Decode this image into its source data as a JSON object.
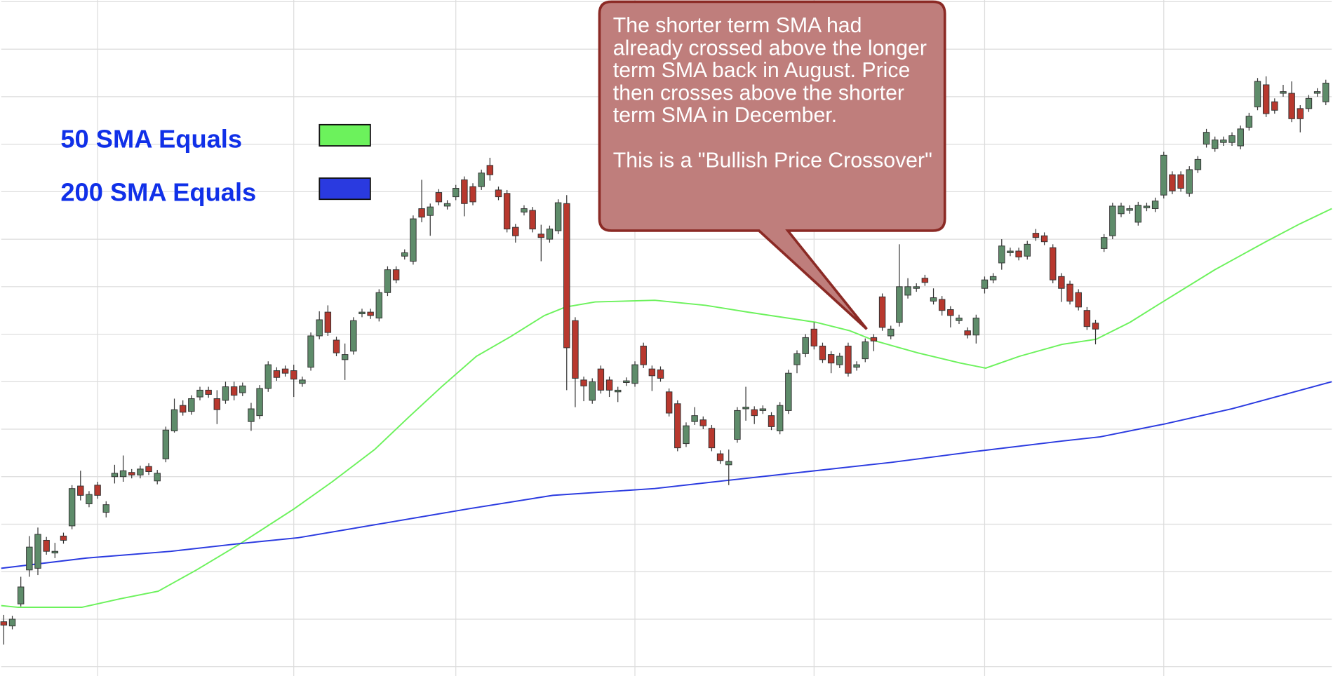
{
  "chart_data": {
    "type": "candlestick",
    "up_color": "#5e8c6a",
    "down_color": "#b8382e",
    "grid": true,
    "xlim": [
      -0.3,
      155.7
    ],
    "xticks": [
      11,
      34,
      53,
      74,
      95,
      115,
      136
    ],
    "ylim": [
      -11,
      786
    ],
    "yticks": [
      0,
      56,
      112,
      168,
      224,
      280,
      336,
      392,
      448,
      504,
      560,
      616,
      672,
      728,
      784
    ],
    "open": [
      53,
      48,
      74,
      114,
      116,
      149,
      134,
      154,
      166,
      213,
      192,
      214,
      182,
      224,
      224,
      229,
      226,
      236,
      219,
      245,
      278,
      308,
      301,
      318,
      326,
      316,
      314,
      330,
      323,
      289,
      296,
      328,
      349,
      351,
      349,
      334,
      353,
      390,
      418,
      385,
      362,
      372,
      416,
      418,
      411,
      441,
      468,
      484,
      478,
      540,
      532,
      559,
      543,
      554,
      574,
      566,
      566,
      591,
      562,
      558,
      518,
      536,
      538,
      510,
      504,
      514,
      546,
      408,
      338,
      314,
      351,
      338,
      324,
      335,
      334,
      378,
      351,
      350,
      324,
      310,
      263,
      289,
      291,
      281,
      251,
      238,
      268,
      304,
      303,
      302,
      296,
      278,
      302,
      356,
      369,
      398,
      378,
      368,
      356,
      378,
      353,
      363,
      388,
      436,
      390,
      406,
      438,
      446,
      458,
      431,
      433,
      421,
      408,
      396,
      391,
      446,
      456,
      476,
      488,
      490,
      484,
      511,
      508,
      494,
      460,
      451,
      441,
      420,
      405,
      493,
      508,
      534,
      538,
      524,
      541,
      540,
      556,
      580,
      580,
      558,
      586,
      616,
      611,
      618,
      618,
      614,
      636,
      660,
      686,
      666,
      676,
      676,
      658,
      658,
      676,
      666
    ],
    "high": [
      61,
      60,
      106,
      154,
      164,
      153,
      146,
      158,
      214,
      231,
      207,
      218,
      195,
      238,
      249,
      233,
      237,
      240,
      232,
      283,
      316,
      314,
      320,
      330,
      330,
      326,
      336,
      336,
      335,
      311,
      332,
      360,
      353,
      355,
      356,
      342,
      394,
      419,
      426,
      389,
      381,
      412,
      422,
      422,
      445,
      472,
      472,
      492,
      532,
      574,
      546,
      563,
      550,
      568,
      578,
      570,
      586,
      600,
      566,
      562,
      522,
      544,
      542,
      521,
      520,
      551,
      556,
      412,
      342,
      340,
      355,
      342,
      330,
      341,
      360,
      382,
      355,
      354,
      328,
      314,
      288,
      306,
      295,
      285,
      255,
      256,
      306,
      330,
      307,
      308,
      300,
      312,
      350,
      373,
      392,
      406,
      382,
      372,
      370,
      382,
      360,
      387,
      392,
      440,
      402,
      498,
      458,
      452,
      462,
      446,
      437,
      425,
      415,
      400,
      415,
      460,
      464,
      504,
      494,
      494,
      502,
      516,
      512,
      498,
      464,
      455,
      445,
      424,
      409,
      510,
      547,
      547,
      544,
      548,
      547,
      553,
      607,
      584,
      584,
      590,
      602,
      634,
      625,
      625,
      630,
      638,
      653,
      694,
      696,
      670,
      686,
      690,
      662,
      674,
      682,
      692
    ],
    "low": [
      26,
      44,
      71,
      106,
      108,
      132,
      128,
      145,
      162,
      196,
      188,
      198,
      176,
      216,
      218,
      222,
      222,
      226,
      215,
      241,
      276,
      296,
      297,
      314,
      317,
      286,
      310,
      314,
      319,
      278,
      292,
      324,
      337,
      342,
      318,
      330,
      349,
      386,
      390,
      366,
      338,
      368,
      412,
      410,
      407,
      437,
      452,
      480,
      474,
      524,
      508,
      544,
      539,
      550,
      531,
      544,
      562,
      573,
      550,
      512,
      500,
      532,
      512,
      478,
      500,
      510,
      326,
      306,
      313,
      310,
      322,
      318,
      312,
      331,
      330,
      352,
      325,
      336,
      295,
      254,
      259,
      285,
      280,
      254,
      239,
      214,
      264,
      290,
      286,
      298,
      279,
      274,
      298,
      346,
      365,
      374,
      358,
      346,
      352,
      342,
      349,
      359,
      372,
      396,
      386,
      401,
      434,
      442,
      449,
      427,
      414,
      400,
      404,
      387,
      381,
      440,
      452,
      468,
      484,
      479,
      480,
      502,
      497,
      452,
      430,
      427,
      420,
      397,
      380,
      489,
      504,
      530,
      534,
      520,
      537,
      536,
      552,
      557,
      560,
      554,
      582,
      612,
      607,
      614,
      614,
      610,
      632,
      656,
      648,
      652,
      672,
      642,
      630,
      654,
      672,
      662
    ],
    "close": [
      49,
      56,
      94,
      141,
      156,
      136,
      136,
      149,
      210,
      202,
      203,
      202,
      191,
      228,
      231,
      226,
      233,
      230,
      228,
      279,
      303,
      300,
      316,
      326,
      321,
      303,
      330,
      320,
      331,
      304,
      328,
      356,
      341,
      346,
      339,
      338,
      390,
      409,
      394,
      370,
      368,
      408,
      418,
      414,
      441,
      468,
      456,
      488,
      528,
      530,
      542,
      548,
      546,
      564,
      546,
      548,
      582,
      580,
      554,
      516,
      508,
      540,
      516,
      506,
      516,
      547,
      376,
      340,
      331,
      336,
      326,
      326,
      326,
      337,
      356,
      356,
      343,
      340,
      299,
      258,
      284,
      296,
      284,
      258,
      243,
      242,
      302,
      306,
      296,
      304,
      283,
      308,
      346,
      369,
      388,
      378,
      362,
      358,
      366,
      346,
      356,
      383,
      384,
      400,
      398,
      448,
      448,
      448,
      453,
      435,
      420,
      414,
      411,
      391,
      411,
      456,
      460,
      496,
      490,
      483,
      498,
      506,
      501,
      456,
      446,
      431,
      424,
      401,
      398,
      506,
      543,
      543,
      540,
      544,
      543,
      549,
      603,
      561,
      564,
      586,
      598,
      630,
      621,
      621,
      626,
      634,
      649,
      690,
      652,
      656,
      678,
      646,
      646,
      670,
      678,
      688
    ],
    "series": [
      {
        "name": "50 SMA Equals",
        "type": "line",
        "color": "#6cf25c",
        "x": [
          -0.3,
          1.69,
          9.15,
          13.63,
          18.11,
          22.59,
          27.56,
          34.03,
          38.51,
          43.48,
          47.46,
          51.44,
          55.42,
          59.4,
          63.38,
          65.87,
          69.35,
          76.32,
          82.29,
          87.26,
          95.22,
          99.2,
          102.19,
          107.16,
          112.14,
          115.12,
          119.1,
          124.08,
          128.06,
          132.04,
          136.02,
          141.99,
          147.96,
          151.94,
          155.7
        ],
        "values": [
          72,
          70,
          70,
          80,
          89,
          114,
          144,
          186,
          218,
          256,
          294,
          331,
          366,
          389,
          414,
          424,
          430,
          432,
          426,
          418,
          406,
          396,
          384,
          370,
          358,
          352,
          366,
          380,
          386,
          406,
          431,
          468,
          501,
          522,
          540
        ]
      },
      {
        "name": "200 SMA Equals",
        "type": "line",
        "color": "#2a3ae0",
        "x": [
          -0.3,
          9.65,
          19.6,
          27.56,
          34.53,
          44.48,
          54.43,
          64.38,
          76.32,
          84.28,
          94.23,
          104.18,
          114.13,
          124.08,
          128.56,
          136.02,
          143.98,
          155.7
        ],
        "values": [
          116,
          128,
          136,
          145,
          152,
          169,
          186,
          202,
          210,
          219,
          230,
          241,
          254,
          266,
          271,
          286,
          304,
          336
        ]
      }
    ],
    "annotations": [
      "The shorter term SMA had already crossed above the longer term SMA back in August. Price then crosses above the shorter term SMA in December.",
      "This is a \"Bullish Price Crossover\""
    ]
  }
}
